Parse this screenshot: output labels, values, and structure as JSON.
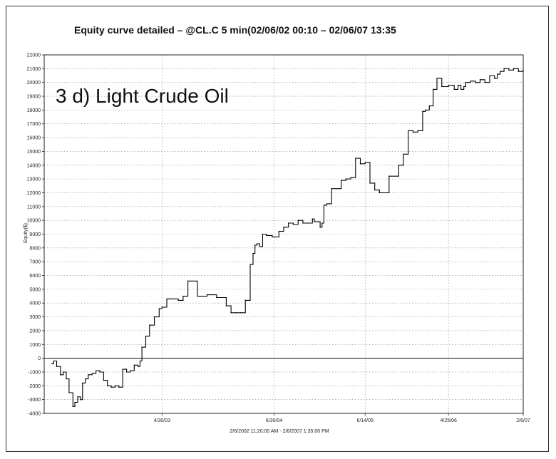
{
  "chart_data": {
    "type": "line",
    "title": "Equity curve detailed – @CL.C 5 min(02/06/02 00:10 – 02/06/07 13:35",
    "annotation": "3 d)  Light Crude Oil",
    "xlabel": "2/6/2002 11:20:00 AM - 2/6/2007 1:35:00 PM",
    "ylabel": "Equity($)",
    "ylim": [
      -4000,
      22000
    ],
    "xlim": [
      2002.1,
      2007.1
    ],
    "y_ticks": [
      -4000,
      -3000,
      -2000,
      -1000,
      0,
      1000,
      2000,
      3000,
      4000,
      5000,
      6000,
      7000,
      8000,
      9000,
      10000,
      11000,
      12000,
      13000,
      14000,
      15000,
      16000,
      17000,
      18000,
      19000,
      20000,
      21000,
      22000
    ],
    "x_ticks": [
      {
        "label": "4/30/03",
        "x": 2003.33
      },
      {
        "label": "6/30/04",
        "x": 2004.5
      },
      {
        "label": "6/14/05",
        "x": 2005.45
      },
      {
        "label": "4/25/06",
        "x": 2006.32
      },
      {
        "label": "2/6/07",
        "x": 2007.1
      }
    ],
    "grid": true,
    "series": [
      {
        "name": "Equity",
        "x": [
          2002.18,
          2002.2,
          2002.23,
          2002.27,
          2002.3,
          2002.33,
          2002.36,
          2002.4,
          2002.42,
          2002.45,
          2002.48,
          2002.5,
          2002.53,
          2002.56,
          2002.6,
          2002.64,
          2002.68,
          2002.72,
          2002.76,
          2002.8,
          2002.84,
          2002.88,
          2002.92,
          2002.96,
          2003.0,
          2003.04,
          2003.08,
          2003.1,
          2003.12,
          2003.16,
          2003.2,
          2003.25,
          2003.3,
          2003.33,
          2003.36,
          2003.38,
          2003.4,
          2003.43,
          2003.46,
          2003.5,
          2003.55,
          2003.6,
          2003.7,
          2003.8,
          2003.9,
          2004.0,
          2004.05,
          2004.1,
          2004.15,
          2004.2,
          2004.25,
          2004.28,
          2004.3,
          2004.32,
          2004.35,
          2004.38,
          2004.42,
          2004.48,
          2004.55,
          2004.6,
          2004.65,
          2004.7,
          2004.75,
          2004.8,
          2004.85,
          2004.9,
          2004.92,
          2004.95,
          2004.98,
          2005.0,
          2005.02,
          2005.05,
          2005.1,
          2005.2,
          2005.25,
          2005.3,
          2005.35,
          2005.4,
          2005.45,
          2005.5,
          2005.55,
          2005.6,
          2005.7,
          2005.8,
          2005.85,
          2005.9,
          2005.95,
          2006.0,
          2006.05,
          2006.08,
          2006.12,
          2006.16,
          2006.2,
          2006.25,
          2006.32,
          2006.38,
          2006.42,
          2006.45,
          2006.48,
          2006.5,
          2006.55,
          2006.6,
          2006.65,
          2006.7,
          2006.75,
          2006.8,
          2006.83,
          2006.86,
          2006.9,
          2006.95,
          2007.0,
          2007.05,
          2007.1
        ],
        "values": [
          -400,
          -200,
          -600,
          -1200,
          -1000,
          -1500,
          -2500,
          -3500,
          -3200,
          -2800,
          -3000,
          -1800,
          -1500,
          -1200,
          -1100,
          -900,
          -1000,
          -1600,
          -2000,
          -2100,
          -2000,
          -2100,
          -800,
          -1000,
          -900,
          -500,
          -600,
          -200,
          800,
          1600,
          2400,
          3000,
          3600,
          3700,
          3700,
          4300,
          4300,
          4300,
          4300,
          4200,
          4500,
          5600,
          4500,
          4600,
          4400,
          3800,
          3300,
          3300,
          3300,
          4200,
          6800,
          7600,
          8200,
          8300,
          8100,
          9000,
          8900,
          8800,
          9200,
          9500,
          9800,
          9700,
          10000,
          9800,
          9800,
          10100,
          9900,
          9900,
          9500,
          9800,
          11100,
          11200,
          12300,
          12900,
          13000,
          13100,
          14500,
          14100,
          14200,
          12700,
          12200,
          12000,
          13200,
          14000,
          14800,
          16500,
          16400,
          16500,
          17900,
          18000,
          18300,
          19500,
          20300,
          19700,
          19800,
          19500,
          19800,
          19500,
          19700,
          20000,
          20100,
          20000,
          20200,
          20000,
          20500,
          20300,
          20600,
          20800,
          21000,
          20900,
          21000,
          20800,
          20900
        ],
        "color": "#000000"
      }
    ]
  }
}
